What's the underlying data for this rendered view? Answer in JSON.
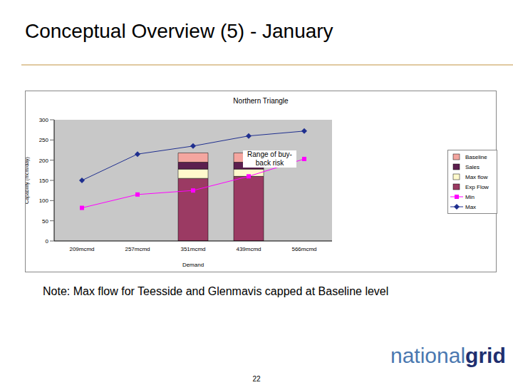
{
  "chart_data": {
    "type": "bar",
    "title": "Northern Triangle",
    "x_label": "Demand",
    "y_label": "Capability (mcm/day)",
    "categories": [
      "209mcmd",
      "257mcmd",
      "351mcmd",
      "439mcmd",
      "566mcmd"
    ],
    "series": [
      {
        "name": "Baseline",
        "type": "bar",
        "color": "#f4a6a0",
        "values": [
          null,
          null,
          23,
          23,
          null
        ]
      },
      {
        "name": "Sales",
        "type": "bar",
        "color": "#5c1f4f",
        "values": [
          null,
          null,
          17,
          17,
          null
        ]
      },
      {
        "name": "Max flow",
        "type": "bar",
        "color": "#fffacd",
        "values": [
          null,
          null,
          23,
          18,
          null
        ]
      },
      {
        "name": "Exp Flow",
        "type": "bar",
        "color": "#9b3a63",
        "values": [
          null,
          null,
          155,
          160,
          null
        ]
      },
      {
        "name": "Min",
        "type": "line",
        "color": "#ff00ff",
        "marker": "square",
        "values": [
          82,
          115,
          125,
          160,
          203
        ]
      },
      {
        "name": "Max",
        "type": "line",
        "color": "#1f2f8f",
        "marker": "diamond",
        "values": [
          150,
          215,
          235,
          260,
          272
        ]
      }
    ],
    "stacked": true,
    "ylim": [
      0,
      300
    ],
    "yticks": [
      0,
      50,
      100,
      150,
      200,
      250,
      300
    ],
    "grid": false,
    "annotations": [
      "Range of buy-back risk"
    ]
  },
  "slide": {
    "title": "Conceptual Overview (5) - January",
    "note": "Note: Max flow for Teesside and Glenmavis capped at Baseline level",
    "page": "22",
    "logo": [
      "national",
      "grid"
    ]
  }
}
